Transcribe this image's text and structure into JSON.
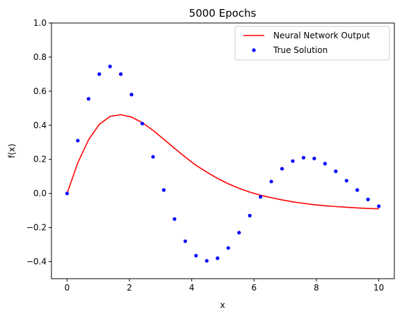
{
  "chart_data": {
    "type": "line",
    "title": "5000 Epochs",
    "xlabel": "x",
    "ylabel": "f(x)",
    "xlim": [
      -0.5,
      10.5
    ],
    "ylim": [
      -0.5,
      1.0
    ],
    "xticks": [
      0,
      2,
      4,
      6,
      8,
      10
    ],
    "xtick_labels": [
      "0",
      "2",
      "4",
      "6",
      "8",
      "10"
    ],
    "yticks": [
      -0.4,
      -0.2,
      0.0,
      0.2,
      0.4,
      0.6,
      0.8,
      1.0
    ],
    "ytick_labels": [
      "−0.4",
      "−0.2",
      "0.0",
      "0.2",
      "0.4",
      "0.6",
      "0.8",
      "1.0"
    ],
    "grid": false,
    "legend_position": "top-right",
    "series": [
      {
        "name": "Neural Network Output",
        "kind": "line",
        "color": "#ff0000",
        "x": [
          0,
          0.345,
          0.69,
          1.034,
          1.379,
          1.724,
          2.069,
          2.414,
          2.759,
          3.103,
          3.448,
          3.793,
          4.138,
          4.483,
          4.828,
          5.172,
          5.517,
          5.862,
          6.207,
          6.552,
          6.897,
          7.241,
          7.586,
          7.931,
          8.276,
          8.621,
          8.966,
          9.31,
          9.655,
          10.0
        ],
        "y": [
          0.0,
          0.18,
          0.315,
          0.405,
          0.452,
          0.462,
          0.448,
          0.415,
          0.37,
          0.318,
          0.265,
          0.213,
          0.165,
          0.125,
          0.088,
          0.057,
          0.03,
          0.008,
          -0.01,
          -0.025,
          -0.038,
          -0.049,
          -0.058,
          -0.066,
          -0.072,
          -0.077,
          -0.081,
          -0.085,
          -0.088,
          -0.09
        ]
      },
      {
        "name": "True Solution",
        "kind": "scatter",
        "color": "#0000ff",
        "x": [
          0,
          0.345,
          0.69,
          1.034,
          1.379,
          1.724,
          2.069,
          2.414,
          2.759,
          3.103,
          3.448,
          3.793,
          4.138,
          4.483,
          4.828,
          5.172,
          5.517,
          5.862,
          6.207,
          6.552,
          6.897,
          7.241,
          7.586,
          7.931,
          8.276,
          8.621,
          8.966,
          9.31,
          9.655,
          10.0
        ],
        "y": [
          0.0,
          0.31,
          0.555,
          0.7,
          0.745,
          0.7,
          0.58,
          0.41,
          0.215,
          0.02,
          -0.15,
          -0.28,
          -0.365,
          -0.395,
          -0.38,
          -0.32,
          -0.23,
          -0.13,
          -0.02,
          0.07,
          0.145,
          0.19,
          0.21,
          0.205,
          0.175,
          0.13,
          0.075,
          0.02,
          -0.035,
          -0.075
        ]
      }
    ]
  }
}
